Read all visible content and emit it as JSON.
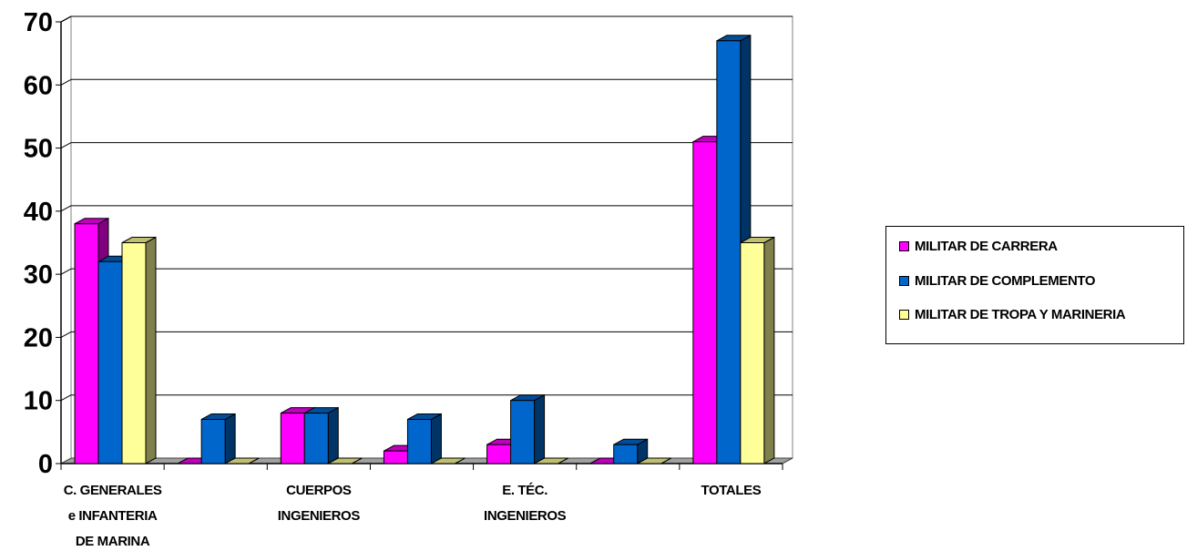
{
  "chart_data": {
    "type": "bar",
    "title": "",
    "xlabel": "",
    "ylabel": "",
    "ylim": [
      0,
      70
    ],
    "y_ticks": [
      "0",
      "10",
      "20",
      "30",
      "40",
      "50",
      "60",
      "70"
    ],
    "grid": true,
    "legend_position": "right",
    "categories": [
      "C. GENERALES e INFANTERIA DE MARINA",
      "",
      "CUERPOS INGENIEROS",
      "",
      "E. TÉC. INGENIEROS",
      "",
      "TOTALES"
    ],
    "category_label_lines": [
      [
        "C. GENERALES",
        "e INFANTERIA",
        "DE MARINA"
      ],
      [],
      [
        "CUERPOS",
        "INGENIEROS"
      ],
      [],
      [
        "E. TÉC.",
        "INGENIEROS"
      ],
      [],
      [
        "TOTALES"
      ]
    ],
    "series": [
      {
        "name": "MILITAR DE CARRERA",
        "color": "#ff00ff",
        "values": [
          38,
          0,
          8,
          2,
          3,
          0,
          51
        ]
      },
      {
        "name": "MILITAR DE COMPLEMENTO",
        "color": "#0066cc",
        "values": [
          32,
          7,
          8,
          7,
          10,
          3,
          67
        ]
      },
      {
        "name": "MILITAR DE TROPA Y MARINERIA",
        "color": "#ffff99",
        "values": [
          35,
          0,
          0,
          0,
          0,
          0,
          35
        ]
      }
    ]
  }
}
